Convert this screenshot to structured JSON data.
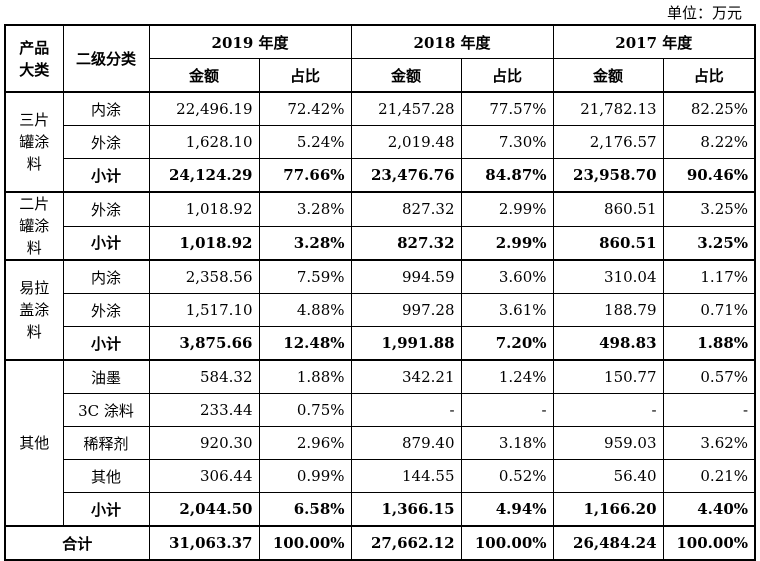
{
  "unit_label": "单位：万元",
  "header": {
    "cat": "产品大类",
    "sub": "二级分类",
    "years": [
      "2019 年度",
      "2018 年度",
      "2017 年度"
    ],
    "amount": "金额",
    "ratio": "占比"
  },
  "groups": [
    {
      "name": "三片罐涂料",
      "rows": [
        {
          "sub": "内涂",
          "v": [
            "22,496.19",
            "72.42%",
            "21,457.28",
            "77.57%",
            "21,782.13",
            "82.25%"
          ]
        },
        {
          "sub": "外涂",
          "v": [
            "1,628.10",
            "5.24%",
            "2,019.48",
            "7.30%",
            "2,176.57",
            "8.22%"
          ]
        },
        {
          "sub": "小计",
          "v": [
            "24,124.29",
            "77.66%",
            "23,476.76",
            "84.87%",
            "23,958.70",
            "90.46%"
          ]
        }
      ]
    },
    {
      "name": "二片罐涂料",
      "rows": [
        {
          "sub": "外涂",
          "v": [
            "1,018.92",
            "3.28%",
            "827.32",
            "2.99%",
            "860.51",
            "3.25%"
          ]
        },
        {
          "sub": "小计",
          "v": [
            "1,018.92",
            "3.28%",
            "827.32",
            "2.99%",
            "860.51",
            "3.25%"
          ]
        }
      ]
    },
    {
      "name": "易拉盖涂料",
      "rows": [
        {
          "sub": "内涂",
          "v": [
            "2,358.56",
            "7.59%",
            "994.59",
            "3.60%",
            "310.04",
            "1.17%"
          ]
        },
        {
          "sub": "外涂",
          "v": [
            "1,517.10",
            "4.88%",
            "997.28",
            "3.61%",
            "188.79",
            "0.71%"
          ]
        },
        {
          "sub": "小计",
          "v": [
            "3,875.66",
            "12.48%",
            "1,991.88",
            "7.20%",
            "498.83",
            "1.88%"
          ]
        }
      ]
    },
    {
      "name": "其他",
      "rows": [
        {
          "sub": "油墨",
          "v": [
            "584.32",
            "1.88%",
            "342.21",
            "1.24%",
            "150.77",
            "0.57%"
          ]
        },
        {
          "sub": "3C 涂料",
          "v": [
            "233.44",
            "0.75%",
            "-",
            "-",
            "-",
            "-"
          ]
        },
        {
          "sub": "稀释剂",
          "v": [
            "920.30",
            "2.96%",
            "879.40",
            "3.18%",
            "959.03",
            "3.62%"
          ]
        },
        {
          "sub": "其他",
          "v": [
            "306.44",
            "0.99%",
            "144.55",
            "0.52%",
            "56.40",
            "0.21%"
          ]
        },
        {
          "sub": "小计",
          "v": [
            "2,044.50",
            "6.58%",
            "1,366.15",
            "4.94%",
            "1,166.20",
            "4.40%"
          ]
        }
      ]
    }
  ],
  "total": {
    "label": "合计",
    "v": [
      "31,063.37",
      "100.00%",
      "27,662.12",
      "100.00%",
      "26,484.24",
      "100.00%"
    ]
  }
}
